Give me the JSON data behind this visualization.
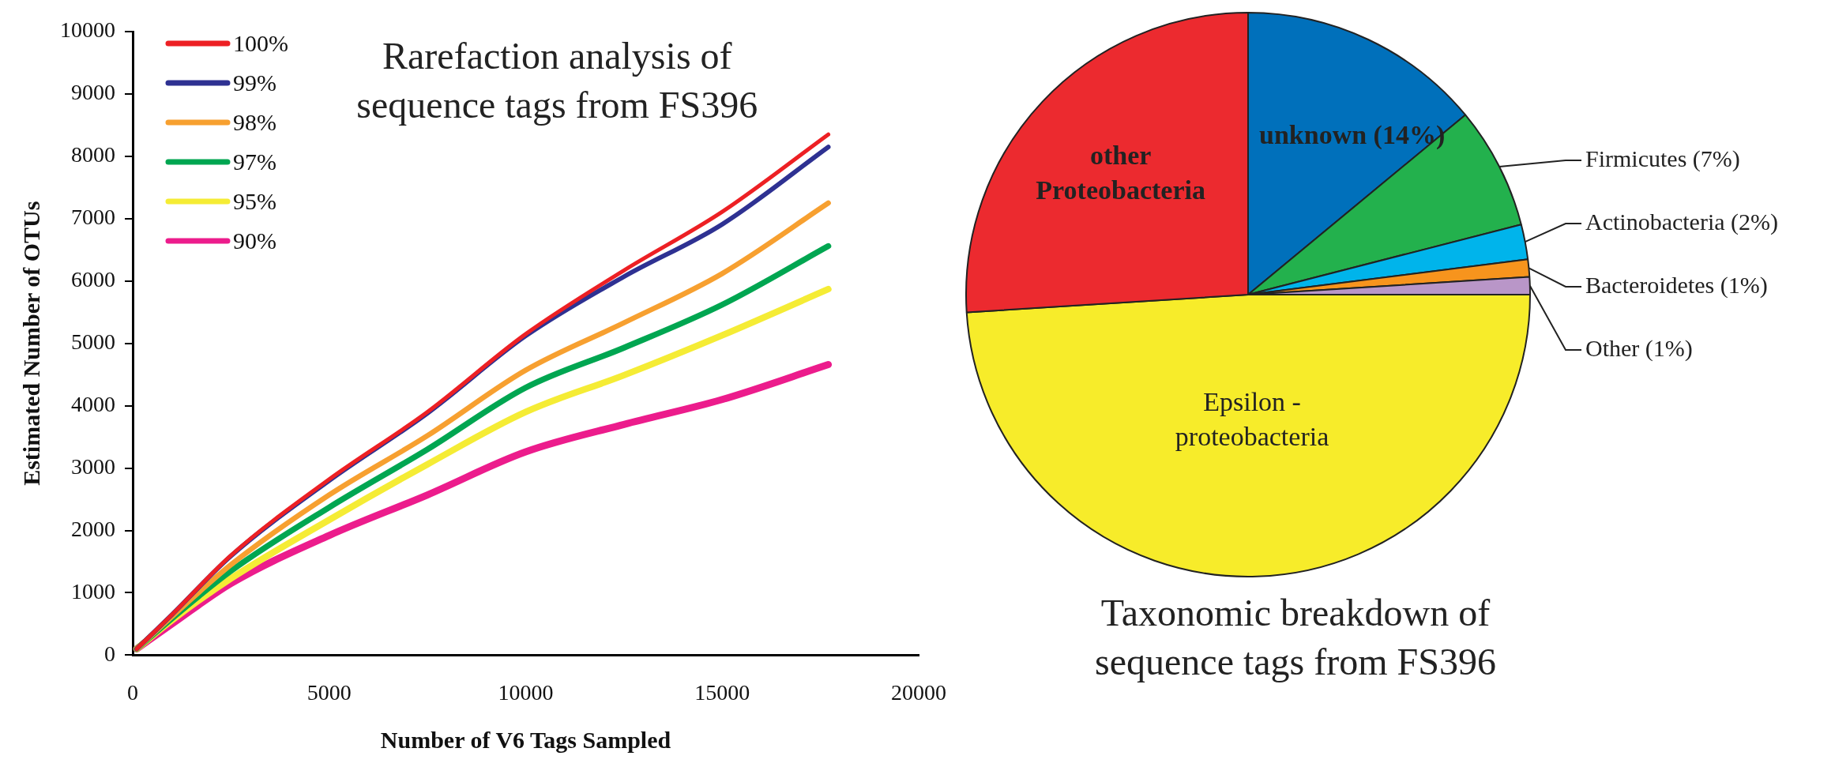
{
  "chart_data": [
    {
      "type": "line",
      "title": "Rarefaction analysis of sequence tags from FS396",
      "xlabel": "Number of V6 Tags Sampled",
      "ylabel": "Estimated Number of OTUs",
      "x": [
        100,
        1000,
        2500,
        5000,
        7500,
        10000,
        12500,
        15000,
        17700
      ],
      "series": [
        {
          "name": "100%",
          "color": "#ed2024",
          "values": [
            100,
            650,
            1600,
            2820,
            3900,
            5150,
            6170,
            7110,
            8350
          ]
        },
        {
          "name": "99%",
          "color": "#2e3192",
          "values": [
            100,
            650,
            1590,
            2800,
            3880,
            5120,
            6070,
            6910,
            8150
          ]
        },
        {
          "name": "98%",
          "color": "#f7a030",
          "values": [
            100,
            620,
            1450,
            2570,
            3520,
            4570,
            5330,
            6120,
            7250
          ]
        },
        {
          "name": "97%",
          "color": "#00a651",
          "values": [
            100,
            590,
            1350,
            2370,
            3300,
            4290,
            4930,
            5620,
            6560
          ]
        },
        {
          "name": "95%",
          "color": "#f5ec35",
          "values": [
            100,
            560,
            1230,
            2170,
            3060,
            3900,
            4490,
            5130,
            5870
          ]
        },
        {
          "name": "90%",
          "color": "#ec1c8c",
          "values": [
            100,
            500,
            1150,
            1920,
            2570,
            3260,
            3700,
            4100,
            4660
          ]
        }
      ],
      "xlim": [
        0,
        20000
      ],
      "xticks": [
        0,
        5000,
        10000,
        15000,
        20000
      ],
      "ylim": [
        0,
        10000
      ],
      "yticks": [
        0,
        1000,
        2000,
        3000,
        4000,
        5000,
        6000,
        7000,
        8000,
        9000,
        10000
      ],
      "legend": "top left",
      "grid": false
    },
    {
      "type": "pie",
      "title": "Taxonomic breakdown of sequence tags from FS396",
      "categories": [
        "unknown (14%)",
        "Firmicutes (7%)",
        "Actinobacteria (2%)",
        "Bacteroidetes (1%)",
        "Other (1%)",
        "Epsilon - proteobacteria",
        "other Proteobacteria"
      ],
      "values": [
        14,
        7,
        2,
        1,
        1,
        49,
        26
      ],
      "colors": [
        "#0070bb",
        "#23b14d",
        "#00b4eb",
        "#f7941d",
        "#b996c8",
        "#f7ec2a",
        "#ec2a2f"
      ]
    }
  ]
}
